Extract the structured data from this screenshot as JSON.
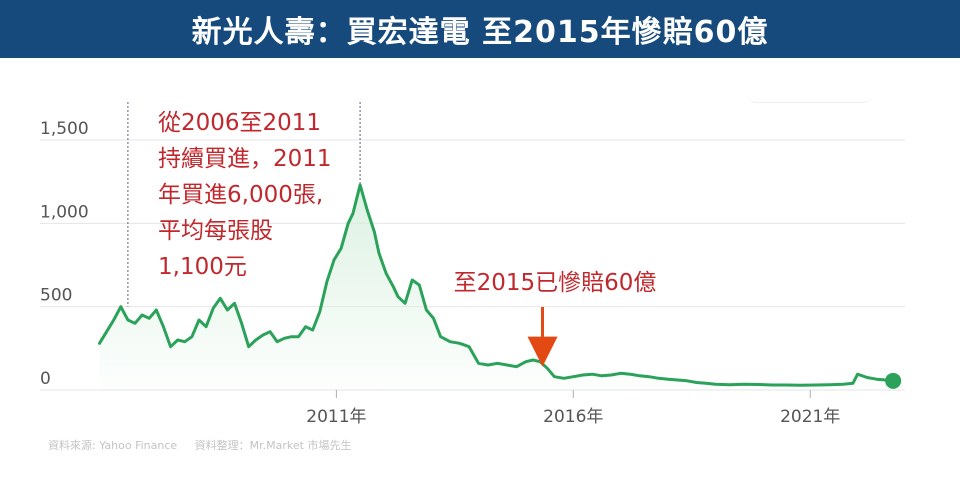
{
  "banner": {
    "title": "新光人壽：買宏達電 至2015年慘賠60億"
  },
  "chart_data": {
    "type": "area",
    "series": [
      {
        "x": [
          2006.0,
          2006.15,
          2006.3,
          2006.45,
          2006.6,
          2006.75,
          2006.9,
          2007.05,
          2007.2,
          2007.35,
          2007.5,
          2007.65,
          2007.8,
          2007.95,
          2008.1,
          2008.25,
          2008.4,
          2008.55,
          2008.7,
          2008.85,
          2009.0,
          2009.15,
          2009.3,
          2009.45,
          2009.6,
          2009.75,
          2009.9,
          2010.05,
          2010.2,
          2010.35,
          2010.5,
          2010.65,
          2010.8,
          2010.95,
          2011.1,
          2011.25,
          2011.35,
          2011.5,
          2011.65,
          2011.8,
          2011.9,
          2012.05,
          2012.2,
          2012.3,
          2012.45,
          2012.6,
          2012.75,
          2012.9,
          2013.05,
          2013.2,
          2013.4,
          2013.6,
          2013.8,
          2014.0,
          2014.2,
          2014.4,
          2014.6,
          2014.8,
          2015.0,
          2015.15,
          2015.3,
          2015.45,
          2015.6,
          2015.8,
          2016.0,
          2016.2,
          2016.4,
          2016.6,
          2016.8,
          2017.0,
          2017.2,
          2017.4,
          2017.6,
          2017.8,
          2018.0,
          2018.2,
          2018.4,
          2018.6,
          2018.8,
          2019.0,
          2019.3,
          2019.6,
          2019.9,
          2020.2,
          2020.5,
          2020.8,
          2021.1,
          2021.4,
          2021.7,
          2021.9,
          2022.0,
          2022.2,
          2022.4,
          2022.6,
          2022.75
        ],
        "y": [
          280,
          350,
          420,
          500,
          420,
          400,
          450,
          430,
          480,
          380,
          260,
          300,
          290,
          320,
          420,
          380,
          490,
          550,
          480,
          520,
          400,
          260,
          300,
          330,
          350,
          290,
          310,
          320,
          320,
          380,
          360,
          470,
          650,
          780,
          850,
          1000,
          1060,
          1230,
          1080,
          950,
          820,
          700,
          620,
          560,
          520,
          660,
          630,
          480,
          430,
          320,
          290,
          280,
          260,
          160,
          150,
          160,
          150,
          140,
          170,
          180,
          170,
          130,
          80,
          70,
          80,
          90,
          95,
          85,
          90,
          100,
          95,
          85,
          80,
          70,
          65,
          60,
          55,
          45,
          40,
          35,
          32,
          35,
          33,
          30,
          30,
          28,
          30,
          32,
          35,
          40,
          95,
          75,
          65,
          60,
          55
        ]
      }
    ],
    "xlim": [
      2005.8,
      2023.0
    ],
    "ylim": [
      0,
      1500
    ],
    "yticks": [
      0,
      500,
      1000,
      1500
    ],
    "ytick_labels": [
      "0",
      "500",
      "1,000",
      "1,500"
    ],
    "xticks": [
      2011,
      2016,
      2021
    ],
    "xtick_labels": [
      "2011年",
      "2016年",
      "2021年"
    ],
    "vlines": [
      2006.6,
      2011.5
    ],
    "annotations": [
      {
        "lines": [
          "從2006至2011",
          "持續買進，2011",
          "年買進6,000張,",
          "平均每張股",
          "1,100元"
        ]
      },
      {
        "lines": [
          "至2015已慘賠60億"
        ],
        "x": 2015.35,
        "y": 170
      }
    ],
    "colors": {
      "line": "#2ba25a",
      "fill": "#d9f0df",
      "annotation": "#c0282d",
      "arrow": "#e34a13",
      "grid": "#e4e4e4",
      "tick": "#555555"
    }
  },
  "source": {
    "origin": "資料來源:   Yahoo Finance",
    "compiler": "資料整理：Mr.Market 市場先生"
  }
}
